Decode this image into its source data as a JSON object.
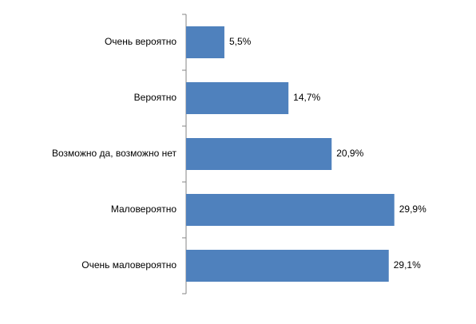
{
  "chart_data": {
    "type": "bar",
    "orientation": "horizontal",
    "categories": [
      "Очень вероятно",
      "Вероятно",
      "Возможно да, возможно нет",
      "Маловероятно",
      "Очень маловероятно"
    ],
    "values": [
      5.5,
      14.7,
      20.9,
      29.9,
      29.1
    ],
    "value_labels": [
      "5,5%",
      "14,7%",
      "20,9%",
      "29,9%",
      "29,1%"
    ],
    "color": "#4f81bd"
  }
}
